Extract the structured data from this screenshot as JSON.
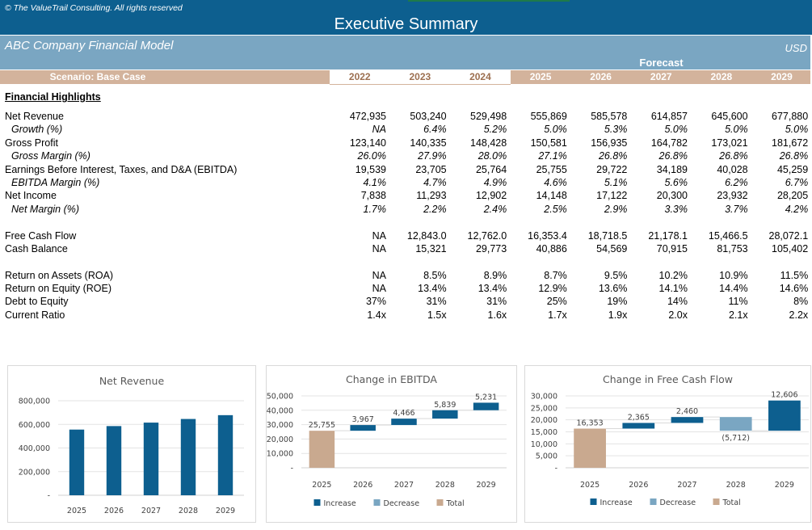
{
  "header": {
    "copyright": "© The ValueTrail Consulting. All rights reserved",
    "title": "Executive Summary",
    "company": "ABC Company Financial Model",
    "currency": "USD",
    "forecast_label": "Forecast",
    "scenario": "Scenario: Base Case",
    "years": [
      "2022",
      "2023",
      "2024",
      "2025",
      "2026",
      "2027",
      "2028",
      "2029"
    ],
    "historical_years": 3
  },
  "section_title": "Financial Highlights",
  "sections": [
    [
      {
        "label": "Net Revenue",
        "italic": false,
        "values": [
          "472,935",
          "503,240",
          "529,498",
          "555,869",
          "585,578",
          "614,857",
          "645,600",
          "677,880"
        ]
      },
      {
        "label": "Growth (%)",
        "italic": true,
        "values": [
          "NA",
          "6.4%",
          "5.2%",
          "5.0%",
          "5.3%",
          "5.0%",
          "5.0%",
          "5.0%"
        ]
      },
      {
        "label": "Gross Profit",
        "italic": false,
        "values": [
          "123,140",
          "140,335",
          "148,428",
          "150,581",
          "156,935",
          "164,782",
          "173,021",
          "181,672"
        ]
      },
      {
        "label": "Gross Margin (%)",
        "italic": true,
        "values": [
          "26.0%",
          "27.9%",
          "28.0%",
          "27.1%",
          "26.8%",
          "26.8%",
          "26.8%",
          "26.8%"
        ]
      },
      {
        "label": "Earnings Before Interest, Taxes, and D&A (EBITDA)",
        "italic": false,
        "values": [
          "19,539",
          "23,705",
          "25,764",
          "25,755",
          "29,722",
          "34,189",
          "40,028",
          "45,259"
        ]
      },
      {
        "label": "EBITDA Margin (%)",
        "italic": true,
        "values": [
          "4.1%",
          "4.7%",
          "4.9%",
          "4.6%",
          "5.1%",
          "5.6%",
          "6.2%",
          "6.7%"
        ]
      },
      {
        "label": "Net Income",
        "italic": false,
        "values": [
          "7,838",
          "11,293",
          "12,902",
          "14,148",
          "17,122",
          "20,300",
          "23,932",
          "28,205"
        ]
      },
      {
        "label": "Net Margin (%)",
        "italic": true,
        "values": [
          "1.7%",
          "2.2%",
          "2.4%",
          "2.5%",
          "2.9%",
          "3.3%",
          "3.7%",
          "4.2%"
        ]
      }
    ],
    [
      {
        "label": "Free Cash Flow",
        "italic": false,
        "values": [
          "NA",
          "12,843.0",
          "12,762.0",
          "16,353.4",
          "18,718.5",
          "21,178.1",
          "15,466.5",
          "28,072.1"
        ]
      },
      {
        "label": "Cash Balance",
        "italic": false,
        "values": [
          "NA",
          "15,321",
          "29,773",
          "40,886",
          "54,569",
          "70,915",
          "81,753",
          "105,402"
        ]
      }
    ],
    [
      {
        "label": "Return on Assets (ROA)",
        "italic": false,
        "values": [
          "NA",
          "8.5%",
          "8.9%",
          "8.7%",
          "9.5%",
          "10.2%",
          "10.9%",
          "11.5%"
        ]
      },
      {
        "label": "Return on Equity (ROE)",
        "italic": false,
        "values": [
          "NA",
          "13.4%",
          "13.4%",
          "12.9%",
          "13.6%",
          "14.1%",
          "14.4%",
          "14.6%"
        ]
      },
      {
        "label": "Debt to Equity",
        "italic": false,
        "values": [
          "37%",
          "31%",
          "31%",
          "25%",
          "19%",
          "14%",
          "11%",
          "8%"
        ]
      },
      {
        "label": "Current Ratio",
        "italic": false,
        "values": [
          "1.4x",
          "1.5x",
          "1.6x",
          "1.7x",
          "1.9x",
          "2.0x",
          "2.1x",
          "2.2x"
        ]
      }
    ]
  ],
  "colors": {
    "dark_blue": "#0d5f8f",
    "light_blue": "#7aa6c2",
    "tan": "#d3b39c",
    "increase": "#0d5f8f",
    "decrease": "#7aa6c2",
    "total": "#c9a98f"
  },
  "chart_data": [
    {
      "type": "bar",
      "title": "Net Revenue",
      "categories": [
        "2025",
        "2026",
        "2027",
        "2028",
        "2029"
      ],
      "values": [
        555869,
        585578,
        614857,
        645600,
        677880
      ],
      "ylim": [
        0,
        800000
      ],
      "yticks": [
        "-",
        "200,000",
        "400,000",
        "600,000",
        "800,000"
      ],
      "grid": true,
      "legend": "none"
    },
    {
      "type": "waterfall",
      "title": "Change in EBITDA",
      "categories": [
        "2025",
        "2026",
        "2027",
        "2028",
        "2029"
      ],
      "values": [
        25755,
        3967,
        4466,
        5839,
        5231
      ],
      "kinds": [
        "total",
        "increase",
        "increase",
        "increase",
        "increase"
      ],
      "data_labels": [
        "25,755",
        "3,967",
        "4,466",
        "5,839",
        "5,231"
      ],
      "ylim": [
        0,
        50000
      ],
      "yticks": [
        "-",
        "10,000",
        "20,000",
        "30,000",
        "40,000",
        "50,000"
      ],
      "legend_entries": [
        "Increase",
        "Decrease",
        "Total"
      ],
      "legend": "bottom",
      "grid": true
    },
    {
      "type": "waterfall",
      "title": "Change in Free Cash Flow",
      "categories": [
        "2025",
        "2026",
        "2027",
        "2028",
        "2029"
      ],
      "values": [
        16353,
        2365,
        2460,
        -5712,
        12606
      ],
      "kinds": [
        "total",
        "increase",
        "increase",
        "decrease",
        "increase"
      ],
      "data_labels": [
        "16,353",
        "2,365",
        "2,460",
        "(5,712)",
        "12,606"
      ],
      "ylim": [
        0,
        30000
      ],
      "yticks": [
        "-",
        "5,000",
        "10,000",
        "15,000",
        "20,000",
        "25,000",
        "30,000"
      ],
      "legend_entries": [
        "Increase",
        "Decrease",
        "Total"
      ],
      "legend": "bottom",
      "grid": true
    }
  ]
}
